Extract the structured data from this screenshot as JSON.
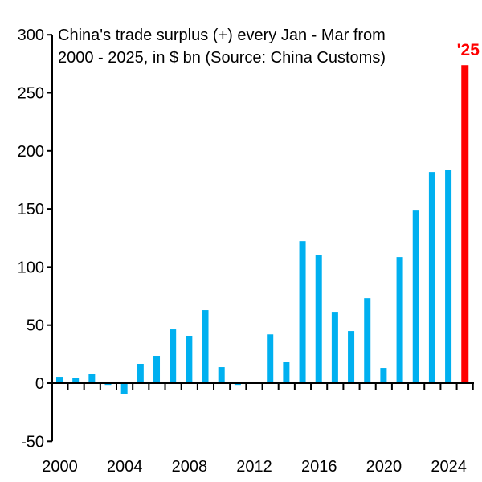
{
  "chart_data": {
    "type": "bar",
    "title": [
      "China's trade surplus (+) every Jan - Mar from",
      "2000 - 2025, in $ bn (Source: China Customs)"
    ],
    "highlight_label": "'25",
    "x": [
      2000,
      2001,
      2002,
      2003,
      2004,
      2005,
      2006,
      2007,
      2008,
      2009,
      2010,
      2011,
      2012,
      2013,
      2014,
      2015,
      2016,
      2017,
      2018,
      2019,
      2020,
      2021,
      2022,
      2023,
      2024,
      2025
    ],
    "values": [
      5.5,
      4.8,
      7.6,
      -1.5,
      -9.5,
      16.6,
      23.5,
      46.3,
      40.8,
      62.9,
      13.8,
      -1.5,
      0.7,
      42,
      18,
      122.3,
      110.6,
      60.8,
      44.9,
      73.2,
      13.1,
      108.5,
      148.6,
      181.8,
      183.8,
      273.7
    ],
    "xticks": [
      "2000",
      "2004",
      "2008",
      "2012",
      "2016",
      "2020",
      "2024"
    ],
    "yticks": [
      -50,
      0,
      50,
      100,
      150,
      200,
      250,
      300
    ],
    "ylim": [
      -50,
      300
    ],
    "xlabel": "",
    "ylabel": "",
    "colors": {
      "bar": "#00b0f0",
      "highlight": "#ff0000"
    }
  }
}
